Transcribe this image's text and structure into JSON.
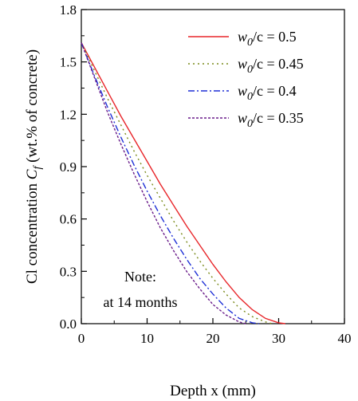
{
  "chart_data": {
    "type": "line",
    "xlabel": "Depth x (mm)",
    "ylabel": {
      "prefix": "Cl concentration ",
      "var": "C",
      "sub": "f",
      "suffix": " (wt.% of  concrete)"
    },
    "xlim": [
      0,
      40
    ],
    "ylim": [
      0.0,
      1.8
    ],
    "x_ticks": [
      "0",
      "10",
      "20",
      "30",
      "40"
    ],
    "x_tick_values": [
      0,
      10,
      20,
      30,
      40
    ],
    "y_ticks": [
      "0.0",
      "0.3",
      "0.6",
      "0.9",
      "1.2",
      "1.5",
      "1.8"
    ],
    "y_tick_values": [
      0.0,
      0.3,
      0.6,
      0.9,
      1.2,
      1.5,
      1.8
    ],
    "legend_position": "top-right",
    "annotation": [
      "Note:",
      "at 14 months"
    ],
    "series": [
      {
        "legend": {
          "var": "w",
          "sub": "0",
          "rest": "/c = 0.5"
        },
        "color": "#e8262a",
        "dash": "solid",
        "x": [
          0,
          2,
          4,
          6,
          8,
          10,
          12,
          14,
          16,
          18,
          20,
          22,
          24,
          26,
          28,
          30,
          31
        ],
        "y": [
          1.61,
          1.47,
          1.33,
          1.19,
          1.06,
          0.93,
          0.8,
          0.68,
          0.56,
          0.45,
          0.34,
          0.24,
          0.15,
          0.08,
          0.03,
          0.005,
          0.0
        ]
      },
      {
        "legend": {
          "var": "w",
          "sub": "0",
          "rest": "/c = 0.45"
        },
        "color": "#7a8a1a",
        "dash": "dotted",
        "x": [
          0,
          2,
          4,
          6,
          8,
          10,
          12,
          14,
          16,
          18,
          20,
          22,
          24,
          26,
          28,
          29
        ],
        "y": [
          1.61,
          1.45,
          1.29,
          1.14,
          0.99,
          0.85,
          0.72,
          0.59,
          0.47,
          0.36,
          0.26,
          0.17,
          0.09,
          0.04,
          0.01,
          0.0
        ]
      },
      {
        "legend": {
          "var": "w",
          "sub": "0",
          "rest": "/c = 0.4"
        },
        "color": "#1d2fd6",
        "dash": "dashdot",
        "x": [
          0,
          2,
          4,
          6,
          8,
          10,
          12,
          14,
          16,
          18,
          20,
          22,
          24,
          26,
          27
        ],
        "y": [
          1.61,
          1.42,
          1.24,
          1.07,
          0.91,
          0.76,
          0.62,
          0.49,
          0.37,
          0.26,
          0.17,
          0.09,
          0.03,
          0.005,
          0.0
        ]
      },
      {
        "legend": {
          "var": "w",
          "sub": "0",
          "rest": "/c = 0.35"
        },
        "color": "#6a1c8a",
        "dash": "short-dash",
        "x": [
          0,
          2,
          4,
          6,
          8,
          10,
          12,
          14,
          16,
          18,
          20,
          22,
          24,
          25
        ],
        "y": [
          1.61,
          1.41,
          1.21,
          1.03,
          0.86,
          0.7,
          0.55,
          0.42,
          0.3,
          0.2,
          0.11,
          0.05,
          0.01,
          0.0
        ]
      }
    ]
  }
}
